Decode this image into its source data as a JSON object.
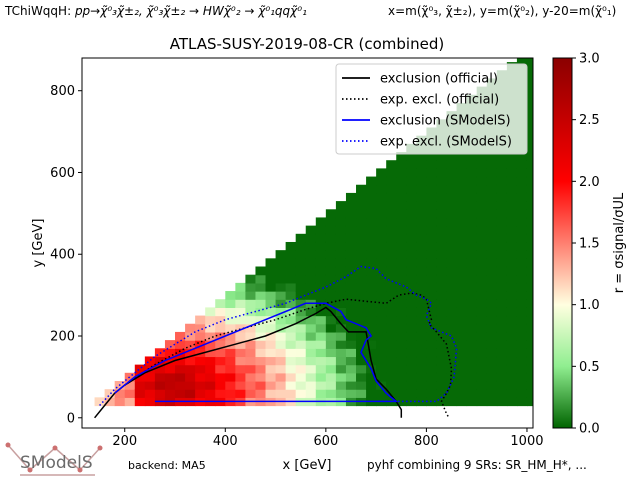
{
  "header": {
    "process_prefix": "TChiWqqH: ",
    "process": "pp→χ̃⁰₃χ̃±₂, χ̃⁰₃χ̃±₂ → HWχ̃⁰₂ → χ̃⁰₁qqχ̃⁰₁",
    "mass_definition": "x=m(χ̃⁰₃, χ̃±₂), y=m(χ̃⁰₂), y-20=m(χ̃⁰₁)"
  },
  "footer": {
    "logo_text": "SModelS",
    "backend": "backend: MA5",
    "combination": "pyhf combining 9 SRs: SR_HM_H*, ..."
  },
  "chart_data": {
    "type": "heatmap",
    "title": "ATLAS-SUSY-2019-08-CR (combined)",
    "xlabel": "x [GeV]",
    "ylabel": "y [GeV]",
    "xlim": [
      115,
      1012
    ],
    "ylim": [
      -25,
      880
    ],
    "xticks": [
      200,
      400,
      600,
      800,
      1000
    ],
    "yticks": [
      0,
      200,
      400,
      600,
      800
    ],
    "grid": false,
    "colorbar": {
      "label": "r = σsignal/σUL",
      "range": [
        0,
        3
      ],
      "ticks": [
        0.0,
        0.5,
        1.0,
        1.5,
        2.0,
        2.5,
        3.0
      ],
      "colors": [
        "#006400",
        "#90ee90",
        "#ffffe0",
        "#ff0000",
        "#8b0000"
      ]
    },
    "grid_points": {
      "cell_size_gev": 20,
      "x_range": [
        130,
        1010
      ],
      "y_range": [
        40,
        880
      ],
      "region": "triangle bounded below by y=40 GeV and above by y ≈ 0.99·x − 90 GeV; r peaks near x≈300, y≈80 and falls off to the upper right"
    },
    "legend": {
      "placement": "top-right",
      "entries": [
        {
          "label": "exclusion (official)",
          "color": "#000000",
          "style": "solid"
        },
        {
          "label": "exp. excl. (official)",
          "color": "#000000",
          "style": "dotted"
        },
        {
          "label": "exclusion (SModelS)",
          "color": "#0000ff",
          "style": "solid"
        },
        {
          "label": "exp. excl. (SModelS)",
          "color": "#0000ff",
          "style": "dotted"
        }
      ]
    },
    "series": [
      {
        "name": "exclusion (official)",
        "color": "#000000",
        "style": "solid",
        "x": [
          140,
          160,
          180,
          200,
          240,
          300,
          360,
          420,
          480,
          540,
          580,
          600,
          610,
          630,
          645,
          680,
          690,
          700,
          720,
          740,
          750,
          750
        ],
        "y": [
          0,
          30,
          60,
          80,
          110,
          140,
          160,
          180,
          200,
          230,
          255,
          270,
          260,
          230,
          210,
          210,
          140,
          95,
          70,
          40,
          20,
          0
        ]
      },
      {
        "name": "exp. excl. (official)",
        "color": "#000000",
        "style": "dotted",
        "x": [
          200,
          260,
          320,
          380,
          440,
          500,
          560,
          600,
          640,
          680,
          720,
          745,
          770,
          790,
          800,
          810,
          805,
          820,
          840,
          850,
          848,
          840,
          830,
          840,
          845
        ],
        "y": [
          80,
          130,
          170,
          200,
          220,
          240,
          265,
          280,
          290,
          285,
          280,
          300,
          305,
          300,
          290,
          240,
          230,
          210,
          180,
          120,
          80,
          60,
          40,
          10,
          0
        ]
      },
      {
        "name": "exclusion (SModelS)",
        "color": "#0000ff",
        "style": "solid",
        "x": [
          180,
          220,
          280,
          340,
          400,
          460,
          520,
          560,
          600,
          630,
          640,
          680,
          690,
          680,
          670,
          690,
          700,
          720,
          740,
          720,
          600,
          500,
          400,
          320,
          260
        ],
        "y": [
          60,
          100,
          140,
          170,
          200,
          230,
          260,
          280,
          280,
          260,
          240,
          220,
          200,
          190,
          160,
          120,
          90,
          60,
          40,
          40,
          40,
          40,
          40,
          40,
          40
        ]
      },
      {
        "name": "exp. excl. (SModelS)",
        "color": "#0000ff",
        "style": "dotted",
        "x": [
          150,
          180,
          220,
          260,
          300,
          340,
          400,
          460,
          520,
          560,
          600,
          640,
          670,
          700,
          720,
          740,
          760,
          780,
          800,
          810,
          800,
          810,
          830,
          850,
          860,
          855,
          840,
          820,
          780,
          700
        ],
        "y": [
          30,
          70,
          110,
          150,
          180,
          210,
          240,
          260,
          280,
          300,
          320,
          345,
          370,
          365,
          340,
          330,
          320,
          300,
          290,
          280,
          250,
          220,
          210,
          200,
          170,
          100,
          60,
          40,
          40,
          40
        ]
      }
    ]
  }
}
